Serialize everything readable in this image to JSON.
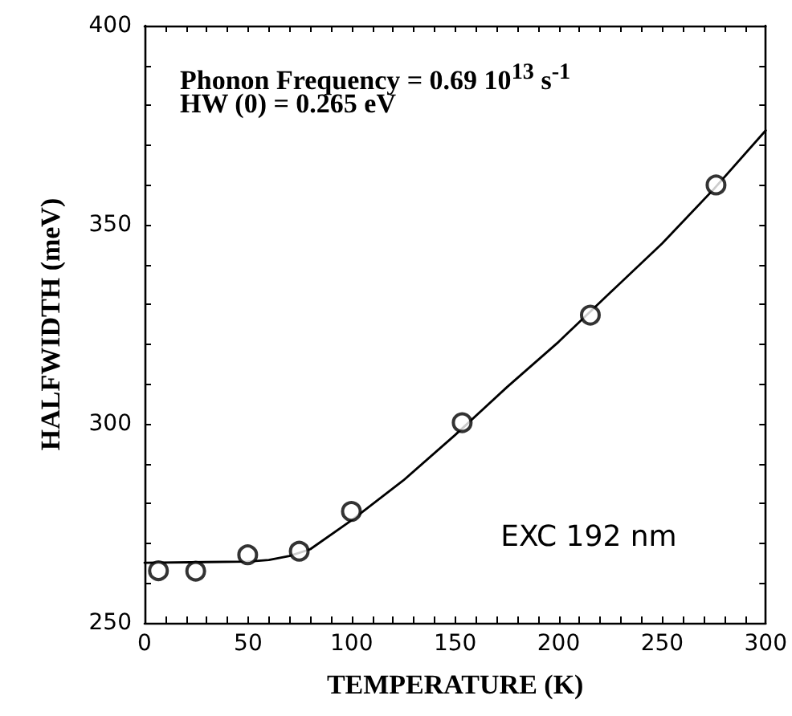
{
  "chart_data": {
    "type": "scatter",
    "xlabel": "TEMPERATURE (K)",
    "ylabel": "HALFWIDTH (meV)",
    "annotations": [
      "Phonon Frequency = 0.69 10$^{13}$ s$^{-1}$",
      "HW (0) = 0.265 eV",
      "EXC 192 nm"
    ],
    "xlim": [
      0,
      300
    ],
    "xticks": [
      0,
      50,
      100,
      150,
      200,
      250,
      300
    ],
    "ylim": [
      250,
      400
    ],
    "yticks": [
      250,
      300,
      350,
      400
    ],
    "grid": false,
    "series": [
      {
        "marker": "circle",
        "color": "#000000",
        "x": [
          6.7,
          24.7,
          49.8,
          74.7,
          99.9,
          153.4,
          215.3,
          276
        ],
        "values": [
          263.1,
          263,
          267.1,
          268,
          278,
          300.3,
          327.3,
          360
        ]
      },
      {
        "type": "line",
        "marker": "none",
        "line_style": "solid",
        "color": "#000000",
        "x": [
          0,
          50,
          60,
          70,
          80,
          100,
          125,
          150,
          175,
          200,
          225,
          250,
          275,
          300
        ],
        "values": [
          265.1,
          265.4,
          265.8,
          266.8,
          268.5,
          275.8,
          285.8,
          297.2,
          309.2,
          320.6,
          333,
          345.3,
          359,
          373.7
        ]
      }
    ]
  }
}
